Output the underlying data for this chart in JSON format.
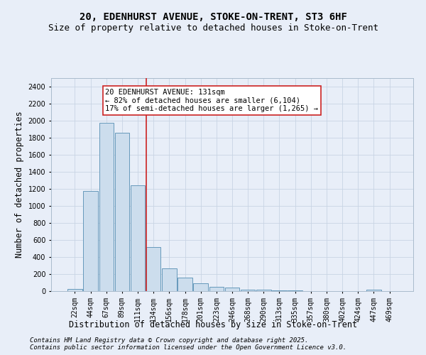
{
  "title_line1": "20, EDENHURST AVENUE, STOKE-ON-TRENT, ST3 6HF",
  "title_line2": "Size of property relative to detached houses in Stoke-on-Trent",
  "xlabel": "Distribution of detached houses by size in Stoke-on-Trent",
  "ylabel": "Number of detached properties",
  "categories": [
    "22sqm",
    "44sqm",
    "67sqm",
    "89sqm",
    "111sqm",
    "134sqm",
    "156sqm",
    "178sqm",
    "201sqm",
    "223sqm",
    "246sqm",
    "268sqm",
    "290sqm",
    "313sqm",
    "335sqm",
    "357sqm",
    "380sqm",
    "402sqm",
    "424sqm",
    "447sqm",
    "469sqm"
  ],
  "values": [
    25,
    1175,
    1975,
    1855,
    1240,
    515,
    270,
    155,
    90,
    50,
    40,
    20,
    15,
    5,
    5,
    3,
    2,
    0,
    0,
    20,
    0
  ],
  "bar_color": "#ccdded",
  "bar_edge_color": "#6699bb",
  "reference_line_index": 5,
  "reference_line_color": "#cc2222",
  "annotation_text": "20 EDENHURST AVENUE: 131sqm\n← 82% of detached houses are smaller (6,104)\n17% of semi-detached houses are larger (1,265) →",
  "annotation_box_facecolor": "white",
  "annotation_box_edgecolor": "#cc2222",
  "ylim": [
    0,
    2500
  ],
  "yticks": [
    0,
    200,
    400,
    600,
    800,
    1000,
    1200,
    1400,
    1600,
    1800,
    2000,
    2200,
    2400
  ],
  "grid_color": "#c8d4e4",
  "bg_color": "#e8eef8",
  "footer_line1": "Contains HM Land Registry data © Crown copyright and database right 2025.",
  "footer_line2": "Contains public sector information licensed under the Open Government Licence v3.0.",
  "title_fontsize": 10,
  "subtitle_fontsize": 9,
  "axis_label_fontsize": 8.5,
  "tick_fontsize": 7,
  "annot_fontsize": 7.5,
  "footer_fontsize": 6.5
}
